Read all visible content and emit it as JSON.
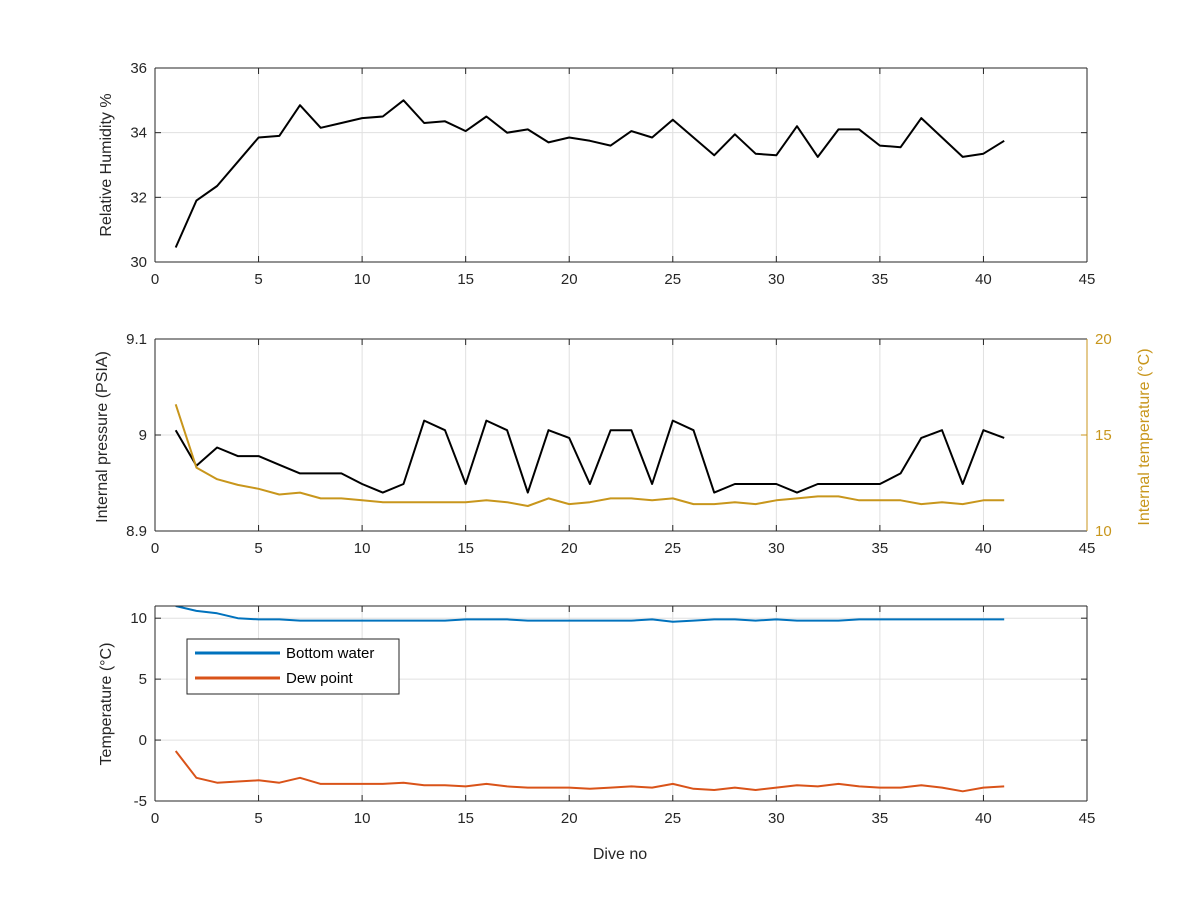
{
  "chart_data": [
    {
      "type": "line",
      "xlabel": "",
      "ylabel": "Relative Humidity %",
      "xlim": [
        0,
        45
      ],
      "ylim": [
        30,
        36
      ],
      "xticks": [
        "0",
        "5",
        "10",
        "15",
        "20",
        "25",
        "30",
        "35",
        "40",
        "45"
      ],
      "yticks": [
        "30",
        "32",
        "34",
        "36"
      ],
      "grid": true,
      "series": [
        {
          "color": "#000000",
          "x": [
            1,
            2,
            3,
            4,
            5,
            6,
            7,
            8,
            9,
            10,
            11,
            12,
            13,
            14,
            15,
            16,
            17,
            18,
            19,
            20,
            21,
            22,
            23,
            24,
            25,
            26,
            27,
            28,
            29,
            30,
            31,
            32,
            33,
            34,
            35,
            36,
            37,
            38,
            39,
            40,
            41
          ],
          "values": [
            30.45,
            31.9,
            32.35,
            33.1,
            33.85,
            33.9,
            34.85,
            34.15,
            34.3,
            34.45,
            34.5,
            35.0,
            34.3,
            34.35,
            34.05,
            34.5,
            34.0,
            34.1,
            33.7,
            33.85,
            33.75,
            33.6,
            34.05,
            33.85,
            34.4,
            33.85,
            33.3,
            33.95,
            33.35,
            33.3,
            34.2,
            33.25,
            34.1,
            34.1,
            33.6,
            33.55,
            34.45,
            33.85,
            33.25,
            33.35,
            33.75
          ]
        }
      ]
    },
    {
      "type": "line",
      "xlabel": "",
      "ylabel": "Internal pressure (PSIA)",
      "ylabel_right": "Internal temperature (°C)",
      "xlim": [
        0,
        45
      ],
      "ylim": [
        8.9,
        9.1
      ],
      "ylim_right": [
        10,
        20
      ],
      "xticks": [
        "0",
        "5",
        "10",
        "15",
        "20",
        "25",
        "30",
        "35",
        "40",
        "45"
      ],
      "yticks": [
        "8.9",
        "9",
        "9.1"
      ],
      "yticks_right": [
        "10",
        "15",
        "20"
      ],
      "grid": true,
      "series": [
        {
          "axis": "left",
          "color": "#000000",
          "x": [
            1,
            2,
            3,
            4,
            5,
            6,
            7,
            8,
            9,
            10,
            11,
            12,
            13,
            14,
            15,
            16,
            17,
            18,
            19,
            20,
            21,
            22,
            23,
            24,
            25,
            26,
            27,
            28,
            29,
            30,
            31,
            32,
            33,
            34,
            35,
            36,
            37,
            38,
            39,
            40,
            41
          ],
          "values": [
            9.005,
            8.968,
            8.987,
            8.978,
            8.978,
            8.969,
            8.96,
            8.96,
            8.96,
            8.949,
            8.94,
            8.949,
            9.015,
            9.005,
            8.949,
            9.015,
            9.005,
            8.94,
            9.005,
            8.997,
            8.949,
            9.005,
            9.005,
            8.949,
            9.015,
            9.005,
            8.94,
            8.949,
            8.949,
            8.949,
            8.94,
            8.949,
            8.949,
            8.949,
            8.949,
            8.96,
            8.997,
            9.005,
            8.949,
            9.005,
            8.997
          ]
        },
        {
          "axis": "right",
          "color": "#c8961c",
          "x": [
            1,
            2,
            3,
            4,
            5,
            6,
            7,
            8,
            9,
            10,
            11,
            12,
            13,
            14,
            15,
            16,
            17,
            18,
            19,
            20,
            21,
            22,
            23,
            24,
            25,
            26,
            27,
            28,
            29,
            30,
            31,
            32,
            33,
            34,
            35,
            36,
            37,
            38,
            39,
            40,
            41
          ],
          "values": [
            16.6,
            13.3,
            12.7,
            12.4,
            12.2,
            11.9,
            12.0,
            11.7,
            11.7,
            11.6,
            11.5,
            11.5,
            11.5,
            11.5,
            11.5,
            11.6,
            11.5,
            11.3,
            11.7,
            11.4,
            11.5,
            11.7,
            11.7,
            11.6,
            11.7,
            11.4,
            11.4,
            11.5,
            11.4,
            11.6,
            11.7,
            11.8,
            11.8,
            11.6,
            11.6,
            11.6,
            11.4,
            11.5,
            11.4,
            11.6,
            11.6
          ]
        }
      ]
    },
    {
      "type": "line",
      "xlabel": "Dive no",
      "ylabel": "Temperature (°C)",
      "xlim": [
        0,
        45
      ],
      "ylim": [
        -5,
        11
      ],
      "xticks": [
        "0",
        "5",
        "10",
        "15",
        "20",
        "25",
        "30",
        "35",
        "40",
        "45"
      ],
      "yticks": [
        "-5",
        "0",
        "5",
        "10"
      ],
      "grid": true,
      "legend_position": "top-left",
      "series": [
        {
          "name": "Bottom water",
          "color": "#0072bd",
          "x": [
            1,
            2,
            3,
            4,
            5,
            6,
            7,
            8,
            9,
            10,
            11,
            12,
            13,
            14,
            15,
            16,
            17,
            18,
            19,
            20,
            21,
            22,
            23,
            24,
            25,
            26,
            27,
            28,
            29,
            30,
            31,
            32,
            33,
            34,
            35,
            36,
            37,
            38,
            39,
            40,
            41
          ],
          "values": [
            11.0,
            10.6,
            10.4,
            10.0,
            9.9,
            9.9,
            9.8,
            9.8,
            9.8,
            9.8,
            9.8,
            9.8,
            9.8,
            9.8,
            9.9,
            9.9,
            9.9,
            9.8,
            9.8,
            9.8,
            9.8,
            9.8,
            9.8,
            9.9,
            9.7,
            9.8,
            9.9,
            9.9,
            9.8,
            9.9,
            9.8,
            9.8,
            9.8,
            9.9,
            9.9,
            9.9,
            9.9,
            9.9,
            9.9,
            9.9,
            9.9
          ]
        },
        {
          "name": "Dew point",
          "color": "#d95319",
          "x": [
            1,
            2,
            3,
            4,
            5,
            6,
            7,
            8,
            9,
            10,
            11,
            12,
            13,
            14,
            15,
            16,
            17,
            18,
            19,
            20,
            21,
            22,
            23,
            24,
            25,
            26,
            27,
            28,
            29,
            30,
            31,
            32,
            33,
            34,
            35,
            36,
            37,
            38,
            39,
            40,
            41
          ],
          "values": [
            -0.9,
            -3.1,
            -3.5,
            -3.4,
            -3.3,
            -3.5,
            -3.1,
            -3.6,
            -3.6,
            -3.6,
            -3.6,
            -3.5,
            -3.7,
            -3.7,
            -3.8,
            -3.6,
            -3.8,
            -3.9,
            -3.9,
            -3.9,
            -4.0,
            -3.9,
            -3.8,
            -3.9,
            -3.6,
            -4.0,
            -4.1,
            -3.9,
            -4.1,
            -3.9,
            -3.7,
            -3.8,
            -3.6,
            -3.8,
            -3.9,
            -3.9,
            -3.7,
            -3.9,
            -4.2,
            -3.9,
            -3.8
          ]
        }
      ]
    }
  ]
}
